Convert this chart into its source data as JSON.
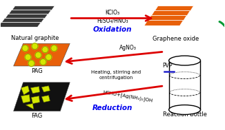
{
  "bg_color": "#ffffff",
  "graphite_color": "#383838",
  "go_color": "#e8600a",
  "pag_color": "#e8600a",
  "fag_color": "#111111",
  "nano_color": "#d4e800",
  "nano_edge": "#7a8800",
  "arrow_red": "#dd0000",
  "arrow_green": "#009933",
  "text_oxidation": "Oxidation",
  "text_reduction": "Reduction",
  "text_natural_graphite": "Natural graphite",
  "text_graphene_oxide": "Graphene oxide",
  "text_pag": "PAG",
  "text_fag": "FAG",
  "text_reaction_bottle": "Reaction bottle",
  "text_kclo3": "KClO₃",
  "text_h2so4": "H₂SO₄/HNO₃",
  "text_agno3": "AgNO₃",
  "text_heating": "Heating, stirring and",
  "text_centrifugation": "centrifugation",
  "text_hcho": "HCHO+[Ag(NH₃)₂]OH",
  "text_pvp": "PVP",
  "pvp_line_color": "#2222cc",
  "blue_color": "#0000ee",
  "label_fs": 6.0,
  "reaction_fs": 5.5,
  "title_fs": 7.5
}
